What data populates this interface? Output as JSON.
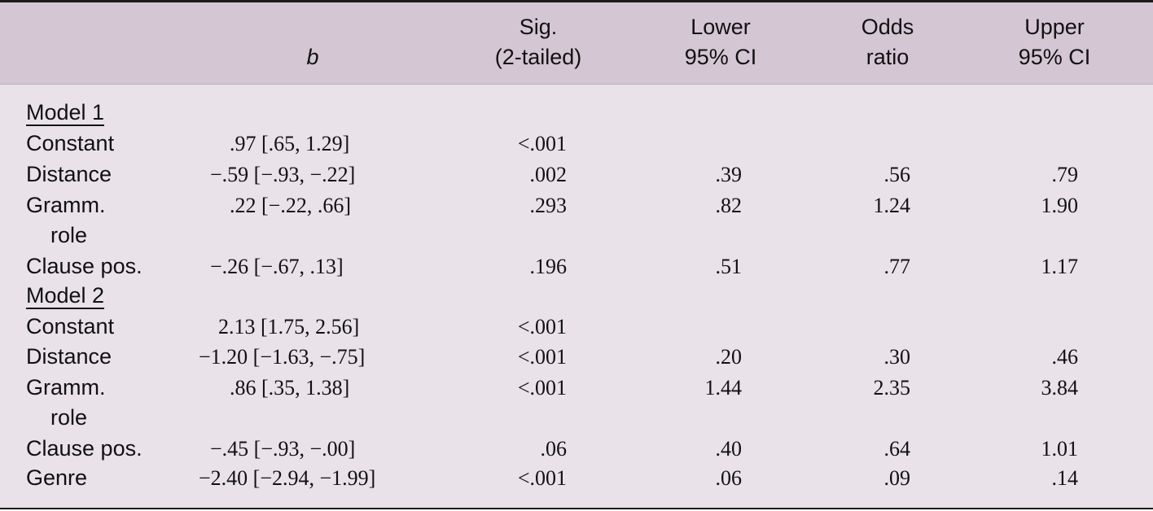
{
  "header": {
    "col_b": "b",
    "col_sig_line1": "Sig.",
    "col_sig_line2": "(2-tailed)",
    "col_lower_line1": "Lower",
    "col_lower_line2": "95% CI",
    "col_odds_line1": "Odds",
    "col_odds_line2": "ratio",
    "col_upper_line1": "Upper",
    "col_upper_line2": "95% CI"
  },
  "model1": {
    "label": "Model 1",
    "rows": [
      {
        "label": "Constant",
        "b": ".97 [.65, 1.29]",
        "sig": "<.001",
        "lower": "",
        "odds": "",
        "upper": ""
      },
      {
        "label": "Distance",
        "b": "−.59 [−.93, −.22]",
        "sig": ".002",
        "lower": ".39",
        "odds": ".56",
        "upper": ".79"
      },
      {
        "label": "Gramm.",
        "label2": "role",
        "b": ".22 [−.22, .66]",
        "sig": ".293",
        "lower": ".82",
        "odds": "1.24",
        "upper": "1.90"
      },
      {
        "label": "Clause pos.",
        "b": "−.26 [−.67, .13]",
        "sig": ".196",
        "lower": ".51",
        "odds": ".77",
        "upper": "1.17"
      }
    ]
  },
  "model2": {
    "label": "Model 2",
    "rows": [
      {
        "label": "Constant",
        "b": "2.13 [1.75, 2.56]",
        "sig": "<.001",
        "lower": "",
        "odds": "",
        "upper": ""
      },
      {
        "label": "Distance",
        "b": "−1.20 [−1.63, −.75]",
        "sig": "<.001",
        "lower": ".20",
        "odds": ".30",
        "upper": ".46"
      },
      {
        "label": "Gramm.",
        "label2": "role",
        "b": ".86 [.35, 1.38]",
        "sig": "<.001",
        "lower": "1.44",
        "odds": "2.35",
        "upper": "3.84"
      },
      {
        "label": "Clause pos.",
        "b": "−.45 [−.93, −.00]",
        "sig": ".06",
        "lower": ".40",
        "odds": ".64",
        "upper": "1.01"
      },
      {
        "label": "Genre",
        "b": "−2.40 [−2.94, −1.99]",
        "sig": "<.001",
        "lower": ".06",
        "odds": ".09",
        "upper": ".14"
      }
    ]
  }
}
